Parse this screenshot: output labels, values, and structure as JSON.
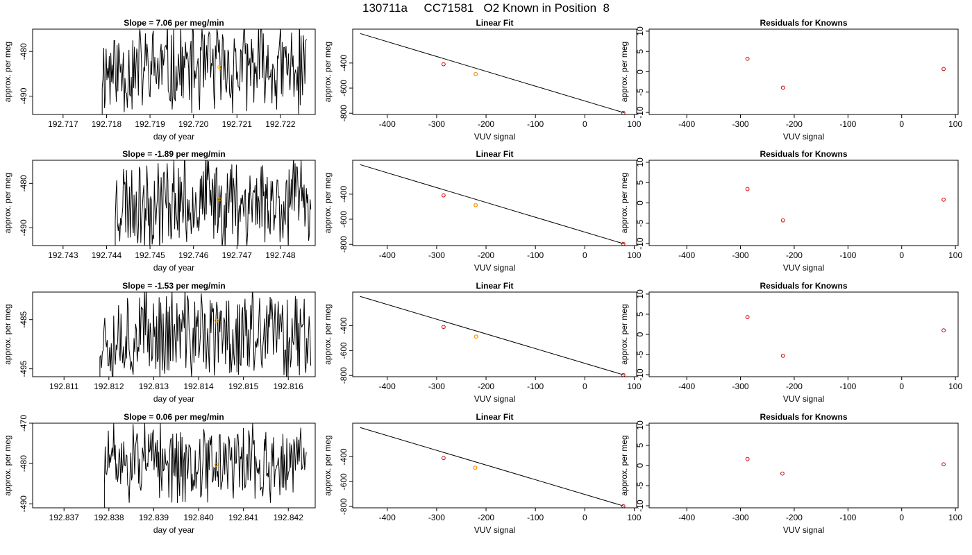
{
  "page_title": "130711a     CC71581   O2 Known in Position  8",
  "colors": {
    "trace": "#000000",
    "unknown_marker": "#FFA500",
    "known_marker": "#CC0000",
    "axis": "#000000"
  },
  "chart_data": [
    {
      "row": 1,
      "panel": "time-series",
      "type": "line",
      "title": "Slope =  7.06  per meg/min",
      "xlabel": "day of year",
      "ylabel": "approx. per meg",
      "xlim": [
        192.7163,
        192.7228
      ],
      "ylim": [
        -494.1,
        -475.0
      ],
      "xticks": [
        "192.717",
        "192.718",
        "192.719",
        "192.720",
        "192.721",
        "192.722"
      ],
      "yticks": [
        "-480",
        "-490"
      ],
      "x_signal_start": 192.7179,
      "x_signal_end": 192.7226,
      "amplitude": 12,
      "mean": -484,
      "seed": 11,
      "orange_point": [
        192.7206,
        -483.5
      ]
    },
    {
      "row": 1,
      "panel": "linear-fit",
      "type": "scatter",
      "title": "Linear Fit",
      "xlabel": "VUV signal",
      "ylabel": "approx. per meg",
      "xlim": [
        -470,
        105
      ],
      "ylim": [
        -810,
        -130
      ],
      "xticks": [
        "-400",
        "-300",
        "-200",
        "-100",
        "0",
        "100"
      ],
      "yticks": [
        "-400",
        "-600",
        "-800"
      ],
      "line": [
        [
          -455,
          -165
        ],
        [
          80,
          -797
        ]
      ],
      "points": [
        [
          -286,
          -410
        ],
        [
          -221,
          -488
        ],
        [
          78,
          -797
        ]
      ]
    },
    {
      "row": 1,
      "panel": "residuals",
      "type": "scatter",
      "title": "Residuals for Knowns",
      "xlabel": "VUV signal",
      "ylabel": "approx. per meg",
      "xlim": [
        -470,
        105
      ],
      "ylim": [
        -10.5,
        10.5
      ],
      "xticks": [
        "-400",
        "-300",
        "-200",
        "-100",
        "0",
        "100"
      ],
      "yticks": [
        "10",
        "5",
        "0",
        "-5",
        "-10"
      ],
      "points": [
        [
          -287,
          3.2
        ],
        [
          -221,
          -3.9
        ],
        [
          78,
          0.7
        ]
      ]
    },
    {
      "row": 2,
      "panel": "time-series",
      "type": "line",
      "title": "Slope =  -1.89  per meg/min",
      "xlabel": "day of year",
      "ylabel": "approx. per meg",
      "xlim": [
        192.7423,
        192.7488
      ],
      "ylim": [
        -494.0,
        -474.8
      ],
      "xticks": [
        "192.743",
        "192.744",
        "192.745",
        "192.746",
        "192.747",
        "192.748"
      ],
      "yticks": [
        "-480",
        "-490"
      ],
      "x_signal_start": 192.7442,
      "x_signal_end": 192.7487,
      "amplitude": 12,
      "mean": -484,
      "seed": 23,
      "orange_point": [
        192.7466,
        -483.6
      ]
    },
    {
      "row": 2,
      "panel": "linear-fit",
      "type": "scatter",
      "title": "Linear Fit",
      "xlabel": "VUV signal",
      "ylabel": "approx. per meg",
      "xlim": [
        -470,
        105
      ],
      "ylim": [
        -810,
        -130
      ],
      "xticks": [
        "-400",
        "-300",
        "-200",
        "-100",
        "0",
        "100"
      ],
      "yticks": [
        "-400",
        "-600",
        "-800"
      ],
      "line": [
        [
          -455,
          -165
        ],
        [
          80,
          -797
        ]
      ],
      "points": [
        [
          -286,
          -410
        ],
        [
          -221,
          -488
        ],
        [
          78,
          -797
        ]
      ]
    },
    {
      "row": 2,
      "panel": "residuals",
      "type": "scatter",
      "title": "Residuals for Knowns",
      "xlabel": "VUV signal",
      "ylabel": "approx. per meg",
      "xlim": [
        -470,
        105
      ],
      "ylim": [
        -10.5,
        10.5
      ],
      "xticks": [
        "-400",
        "-300",
        "-200",
        "-100",
        "0",
        "100"
      ],
      "yticks": [
        "10",
        "5",
        "0",
        "-5",
        "-10"
      ],
      "points": [
        [
          -287,
          3.4
        ],
        [
          -221,
          -4.3
        ],
        [
          78,
          0.8
        ]
      ]
    },
    {
      "row": 3,
      "panel": "time-series",
      "type": "line",
      "title": "Slope =  -1.53  per meg/min",
      "xlabel": "day of year",
      "ylabel": "approx. per meg",
      "xlim": [
        192.8103,
        192.8166
      ],
      "ylim": [
        -496.6,
        -479.4
      ],
      "xticks": [
        "192.811",
        "192.812",
        "192.813",
        "192.814",
        "192.815",
        "192.816"
      ],
      "yticks": [
        "-485",
        "-495"
      ],
      "x_signal_start": 192.8118,
      "x_signal_end": 192.8165,
      "amplitude": 11,
      "mean": -488,
      "seed": 37,
      "orange_point": [
        192.8144,
        -485.2
      ]
    },
    {
      "row": 3,
      "panel": "linear-fit",
      "type": "scatter",
      "title": "Linear Fit",
      "xlabel": "VUV signal",
      "ylabel": "approx. per meg",
      "xlim": [
        -470,
        105
      ],
      "ylim": [
        -810,
        -130
      ],
      "xticks": [
        "-400",
        "-300",
        "-200",
        "-100",
        "0",
        "100"
      ],
      "yticks": [
        "-400",
        "-600",
        "-800"
      ],
      "line": [
        [
          -455,
          -165
        ],
        [
          80,
          -797
        ]
      ],
      "points": [
        [
          -286,
          -410
        ],
        [
          -220,
          -488
        ],
        [
          78,
          -797
        ]
      ]
    },
    {
      "row": 3,
      "panel": "residuals",
      "type": "scatter",
      "title": "Residuals for Knowns",
      "xlabel": "VUV signal",
      "ylabel": "approx. per meg",
      "xlim": [
        -470,
        105
      ],
      "ylim": [
        -10.5,
        10.5
      ],
      "xticks": [
        "-400",
        "-300",
        "-200",
        "-100",
        "0",
        "100"
      ],
      "yticks": [
        "10",
        "5",
        "0",
        "-5",
        "-10"
      ],
      "points": [
        [
          -287,
          4.3
        ],
        [
          -221,
          -5.3
        ],
        [
          78,
          1.0
        ]
      ]
    },
    {
      "row": 4,
      "panel": "time-series",
      "type": "line",
      "title": "Slope =  0.06  per meg/min",
      "xlabel": "day of year",
      "ylabel": "approx. per meg",
      "xlim": [
        192.8363,
        192.8426
      ],
      "ylim": [
        -491.0,
        -470.0
      ],
      "xticks": [
        "192.837",
        "192.838",
        "192.839",
        "192.840",
        "192.841",
        "192.842"
      ],
      "yticks": [
        "-470",
        "-480",
        "-490"
      ],
      "x_signal_start": 192.8379,
      "x_signal_end": 192.8424,
      "amplitude": 11,
      "mean": -480,
      "seed": 51,
      "orange_point": [
        192.8404,
        -480.3
      ]
    },
    {
      "row": 4,
      "panel": "linear-fit",
      "type": "scatter",
      "title": "Linear Fit",
      "xlabel": "VUV signal",
      "ylabel": "approx. per meg",
      "xlim": [
        -470,
        105
      ],
      "ylim": [
        -810,
        -130
      ],
      "xticks": [
        "-400",
        "-300",
        "-200",
        "-100",
        "0",
        "100"
      ],
      "yticks": [
        "-400",
        "-600",
        "-800"
      ],
      "line": [
        [
          -455,
          -165
        ],
        [
          80,
          -797
        ]
      ],
      "points": [
        [
          -286,
          -410
        ],
        [
          -222,
          -488
        ],
        [
          78,
          -797
        ]
      ]
    },
    {
      "row": 4,
      "panel": "residuals",
      "type": "scatter",
      "title": "Residuals for Knowns",
      "xlabel": "VUV signal",
      "ylabel": "approx. per meg",
      "xlim": [
        -470,
        105
      ],
      "ylim": [
        -10.5,
        10.5
      ],
      "xticks": [
        "-400",
        "-300",
        "-200",
        "-100",
        "0",
        "100"
      ],
      "yticks": [
        "10",
        "5",
        "0",
        "-5",
        "-10"
      ],
      "points": [
        [
          -287,
          1.6
        ],
        [
          -222,
          -2.0
        ],
        [
          78,
          0.3
        ]
      ]
    }
  ]
}
